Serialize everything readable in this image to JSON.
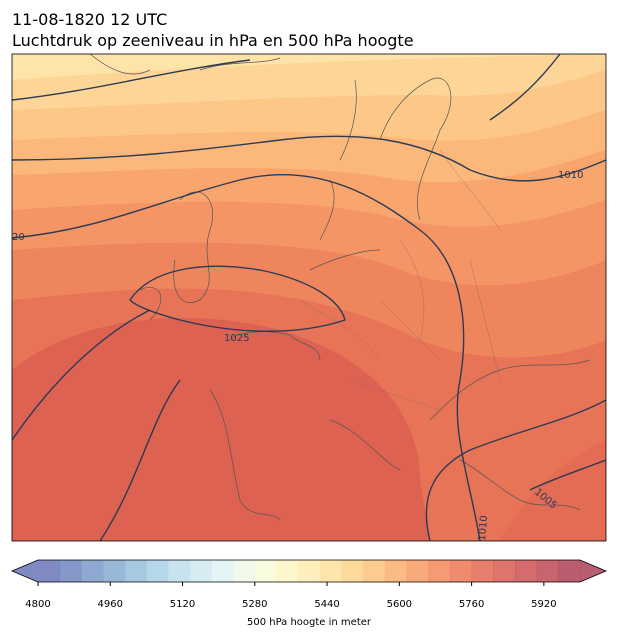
{
  "title_line1": "11-08-1820 12 UTC",
  "title_line2": "Luchtdruk op zeeniveau in hPa en 500 hPa hoogte",
  "contour_labels": [
    "1010",
    "20",
    "1025",
    "1005",
    "1010"
  ],
  "colorbar": {
    "label": "500 hPa hoogte in meter",
    "range": [
      4800,
      6000
    ],
    "ticks": [
      4800,
      4960,
      5120,
      5280,
      5440,
      5600,
      5760,
      5920
    ]
  }
}
